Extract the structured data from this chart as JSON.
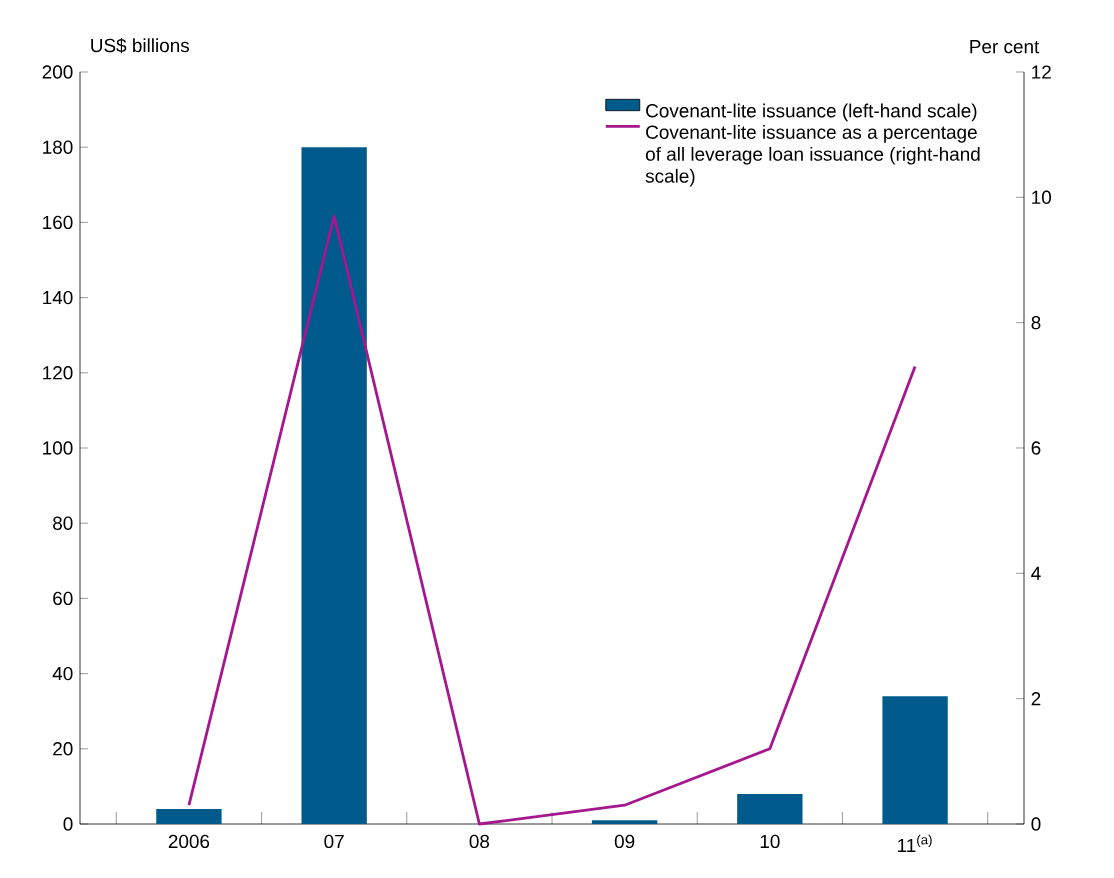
{
  "chart_data": {
    "type": "bar",
    "categories": [
      "2006",
      "07",
      "08",
      "09",
      "10",
      "11$^{(a)}$"
    ],
    "ylabel": "US$ billions",
    "y2label": "Per cent",
    "ylim": [
      0,
      200
    ],
    "yticks": [
      0,
      20,
      40,
      60,
      80,
      100,
      120,
      140,
      160,
      180,
      200
    ],
    "y2lim": [
      0,
      12
    ],
    "y2ticks": [
      0,
      2,
      4,
      6,
      8,
      10,
      12
    ],
    "legend": "top right",
    "series": [
      {
        "name": "Covenant-lite issuance (left-hand scale)",
        "color": "#005a8c",
        "values": [
          4,
          180,
          0,
          1,
          8,
          34
        ]
      },
      {
        "name": "Covenant-lite issuance as a percentage of all leverage loan issuance (right-hand scale)",
        "type": "line",
        "axis": "y2",
        "color": "#a5168f",
        "values": [
          0.3,
          9.7,
          0,
          0.3,
          1.2,
          7.3
        ]
      }
    ]
  }
}
